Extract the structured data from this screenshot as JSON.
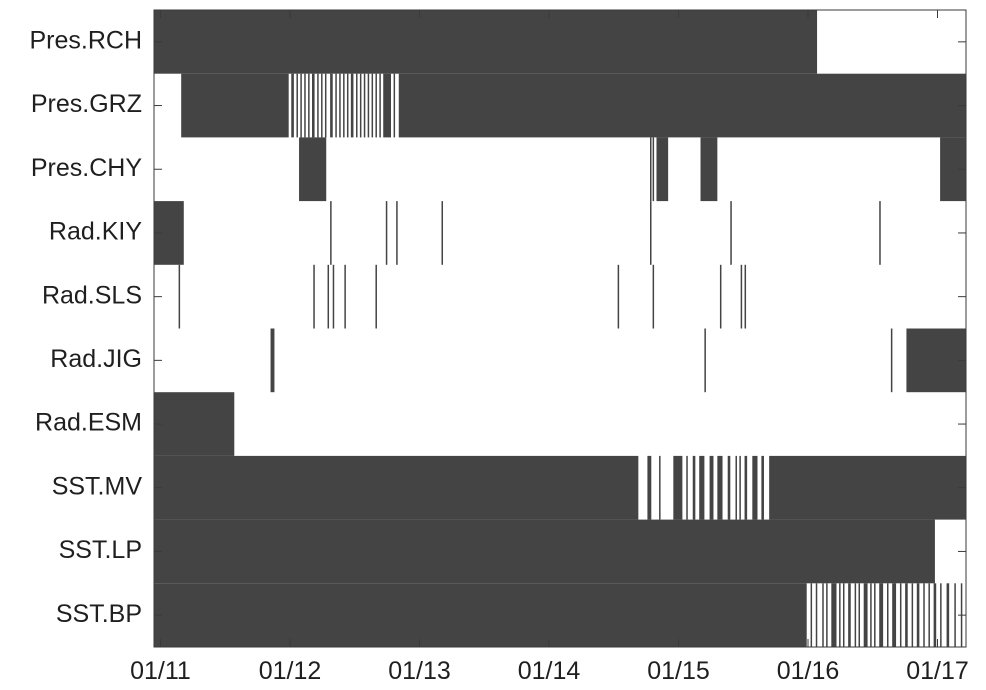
{
  "chart_data": {
    "type": "heatmap",
    "title": "",
    "xlabel": "",
    "ylabel": "",
    "x_ticks": [
      "01/11",
      "01/12",
      "01/13",
      "01/14",
      "01/15",
      "01/16",
      "01/17"
    ],
    "x_tick_positions": [
      11,
      12,
      13,
      14,
      15,
      16,
      17
    ],
    "xlim": [
      10.95,
      17.22
    ],
    "rows": [
      "Pres.RCH",
      "Pres.GRZ",
      "Pres.CHY",
      "Rad.KIY",
      "Rad.SLS",
      "Rad.JIG",
      "Rad.ESM",
      "SST.MV",
      "SST.LP",
      "SST.BP"
    ],
    "legend": "none",
    "grid": false,
    "colors": {
      "filled": "#444444",
      "empty": "#ffffff",
      "frame": "#3a3a3a",
      "text": "#1f1f1f"
    },
    "intervals": {
      "Pres.RCH": [
        [
          10.95,
          16.07
        ]
      ],
      "Pres.GRZ": [
        [
          11.16,
          11.99
        ],
        [
          12.01,
          12.03
        ],
        [
          12.05,
          12.06
        ],
        [
          12.08,
          12.09
        ],
        [
          12.11,
          12.12
        ],
        [
          12.14,
          12.15
        ],
        [
          12.17,
          12.19
        ],
        [
          12.21,
          12.22
        ],
        [
          12.24,
          12.25
        ],
        [
          12.27,
          12.28
        ],
        [
          12.31,
          12.33
        ],
        [
          12.35,
          12.36
        ],
        [
          12.38,
          12.39
        ],
        [
          12.41,
          12.42
        ],
        [
          12.44,
          12.45
        ],
        [
          12.47,
          12.49
        ],
        [
          12.51,
          12.52
        ],
        [
          12.54,
          12.55
        ],
        [
          12.57,
          12.58
        ],
        [
          12.6,
          12.61
        ],
        [
          12.63,
          12.64
        ],
        [
          12.66,
          12.67
        ],
        [
          12.69,
          12.7
        ],
        [
          12.72,
          12.78
        ],
        [
          12.8,
          12.81
        ],
        [
          12.84,
          17.22
        ]
      ],
      "Pres.CHY": [
        [
          12.07,
          12.28
        ],
        [
          14.78,
          14.78
        ],
        [
          14.8,
          14.81
        ],
        [
          14.83,
          14.92
        ],
        [
          15.17,
          15.3
        ],
        [
          17.02,
          17.22
        ]
      ],
      "Rad.KIY": [
        [
          10.95,
          11.18
        ],
        [
          12.31,
          12.32
        ],
        [
          12.74,
          12.75
        ],
        [
          12.82,
          12.83
        ],
        [
          13.17,
          13.18
        ],
        [
          14.78,
          14.79
        ],
        [
          15.4,
          15.41
        ],
        [
          16.55,
          16.56
        ]
      ],
      "Rad.SLS": [
        [
          11.14,
          11.15
        ],
        [
          12.18,
          12.19
        ],
        [
          12.29,
          12.3
        ],
        [
          12.33,
          12.34
        ],
        [
          12.42,
          12.43
        ],
        [
          12.66,
          12.67
        ],
        [
          14.53,
          14.54
        ],
        [
          14.8,
          14.81
        ],
        [
          15.32,
          15.33
        ],
        [
          15.48,
          15.49
        ],
        [
          15.51,
          15.52
        ]
      ],
      "Rad.JIG": [
        [
          11.85,
          11.88
        ],
        [
          15.2,
          15.21
        ],
        [
          16.64,
          16.65
        ],
        [
          16.76,
          17.22
        ]
      ],
      "Rad.ESM": [
        [
          10.95,
          11.57
        ]
      ],
      "SST.MV": [
        [
          10.95,
          14.69
        ],
        [
          14.76,
          14.79
        ],
        [
          14.85,
          14.86
        ],
        [
          14.96,
          15.03
        ],
        [
          15.06,
          15.07
        ],
        [
          15.11,
          15.13
        ],
        [
          15.16,
          15.2
        ],
        [
          15.24,
          15.27
        ],
        [
          15.3,
          15.34
        ],
        [
          15.38,
          15.4
        ],
        [
          15.44,
          15.45
        ],
        [
          15.47,
          15.48
        ],
        [
          15.51,
          15.53
        ],
        [
          15.57,
          15.61
        ],
        [
          15.64,
          15.66
        ],
        [
          15.7,
          17.22
        ]
      ],
      "SST.LP": [
        [
          10.95,
          16.98
        ]
      ],
      "SST.BP": [
        [
          10.95,
          15.99
        ],
        [
          16.02,
          16.03
        ],
        [
          16.06,
          16.07
        ],
        [
          16.11,
          16.12
        ],
        [
          16.14,
          16.15
        ],
        [
          16.18,
          16.22
        ],
        [
          16.24,
          16.25
        ],
        [
          16.27,
          16.28
        ],
        [
          16.31,
          16.33
        ],
        [
          16.36,
          16.37
        ],
        [
          16.39,
          16.4
        ],
        [
          16.43,
          16.46
        ],
        [
          16.48,
          16.49
        ],
        [
          16.51,
          16.52
        ],
        [
          16.55,
          16.58
        ],
        [
          16.61,
          16.62
        ],
        [
          16.65,
          16.68
        ],
        [
          16.71,
          16.72
        ],
        [
          16.75,
          16.77
        ],
        [
          16.8,
          16.81
        ],
        [
          16.84,
          16.86
        ],
        [
          16.89,
          16.9
        ],
        [
          16.93,
          16.94
        ],
        [
          16.97,
          16.99
        ],
        [
          17.02,
          17.03
        ],
        [
          17.07,
          17.09
        ],
        [
          17.13,
          17.14
        ],
        [
          17.18,
          17.19
        ]
      ]
    }
  }
}
